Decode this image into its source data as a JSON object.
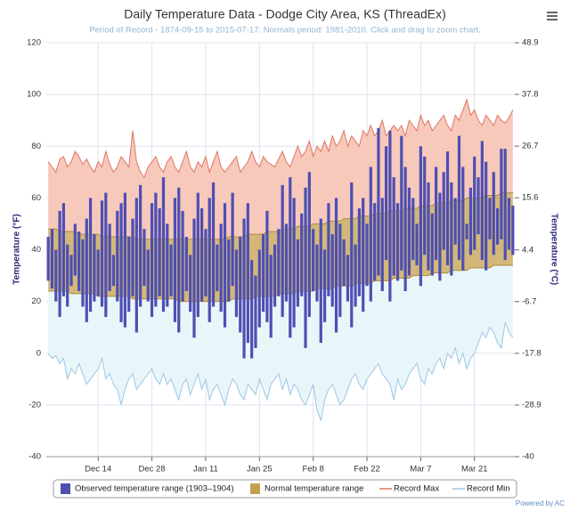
{
  "chart_data": {
    "type": "combo",
    "title": "Daily Temperature Data - Dodge City Area, KS (ThreadEx)",
    "subtitle": "Period of Record - 1874-09-15 to 2015-07-17. Normals period: 1981-2010. Click and drag to zoom chart.",
    "y_label": "Temperature (°F)",
    "y2_label": "Temperature (°C)",
    "credit": "Powered by AC",
    "x": [
      "Dec 1",
      "Dec 2",
      "Dec 3",
      "Dec 4",
      "Dec 5",
      "Dec 6",
      "Dec 7",
      "Dec 8",
      "Dec 9",
      "Dec 10",
      "Dec 11",
      "Dec 12",
      "Dec 13",
      "Dec 14",
      "Dec 15",
      "Dec 16",
      "Dec 17",
      "Dec 18",
      "Dec 19",
      "Dec 20",
      "Dec 21",
      "Dec 22",
      "Dec 23",
      "Dec 24",
      "Dec 25",
      "Dec 26",
      "Dec 27",
      "Dec 28",
      "Dec 29",
      "Dec 30",
      "Dec 31",
      "Jan 1",
      "Jan 2",
      "Jan 3",
      "Jan 4",
      "Jan 5",
      "Jan 6",
      "Jan 7",
      "Jan 8",
      "Jan 9",
      "Jan 10",
      "Jan 11",
      "Jan 12",
      "Jan 13",
      "Jan 14",
      "Jan 15",
      "Jan 16",
      "Jan 17",
      "Jan 18",
      "Jan 19",
      "Jan 20",
      "Jan 21",
      "Jan 22",
      "Jan 23",
      "Jan 24",
      "Jan 25",
      "Jan 26",
      "Jan 27",
      "Jan 28",
      "Jan 29",
      "Jan 30",
      "Jan 31",
      "Feb 1",
      "Feb 2",
      "Feb 3",
      "Feb 4",
      "Feb 5",
      "Feb 6",
      "Feb 7",
      "Feb 8",
      "Feb 9",
      "Feb 10",
      "Feb 11",
      "Feb 12",
      "Feb 13",
      "Feb 14",
      "Feb 15",
      "Feb 16",
      "Feb 17",
      "Feb 18",
      "Feb 19",
      "Feb 20",
      "Feb 21",
      "Feb 22",
      "Feb 23",
      "Feb 24",
      "Feb 25",
      "Feb 26",
      "Feb 27",
      "Feb 28",
      "Feb 29",
      "Mar 1",
      "Mar 2",
      "Mar 3",
      "Mar 4",
      "Mar 5",
      "Mar 6",
      "Mar 7",
      "Mar 8",
      "Mar 9",
      "Mar 10",
      "Mar 11",
      "Mar 12",
      "Mar 13",
      "Mar 14",
      "Mar 15",
      "Mar 16",
      "Mar 17",
      "Mar 18",
      "Mar 19",
      "Mar 20",
      "Mar 21",
      "Mar 22",
      "Mar 23",
      "Mar 24",
      "Mar 25",
      "Mar 26",
      "Mar 27",
      "Mar 28",
      "Mar 29",
      "Mar 30",
      "Mar 31"
    ],
    "xticks": [
      "Dec 14",
      "Dec 28",
      "Jan 11",
      "Jan 25",
      "Feb 8",
      "Feb 22",
      "Mar 7",
      "Mar 21"
    ],
    "ylim": [
      -40,
      120
    ],
    "yticks": [
      -40,
      -20,
      0,
      20,
      40,
      60,
      80,
      100,
      120
    ],
    "y2lim": [
      -40,
      48.9
    ],
    "y2ticks": [
      -40,
      -28.9,
      -17.8,
      -6.7,
      4.4,
      15.6,
      26.7,
      37.8,
      48.9
    ],
    "grid": true,
    "legend": "bottom",
    "series": [
      {
        "name": "Record Max",
        "type": "line",
        "color": "#e07462",
        "fill": "#f7c9bb",
        "values": [
          74,
          72,
          70,
          75,
          76,
          72,
          74,
          78,
          76,
          73,
          75,
          72,
          70,
          74,
          72,
          78,
          73,
          70,
          72,
          76,
          74,
          72,
          86,
          74,
          70,
          68,
          72,
          74,
          76,
          72,
          70,
          74,
          76,
          72,
          70,
          74,
          78,
          72,
          70,
          74,
          72,
          76,
          70,
          74,
          78,
          72,
          70,
          72,
          74,
          76,
          70,
          72,
          74,
          78,
          74,
          72,
          76,
          74,
          73,
          72,
          75,
          78,
          74,
          72,
          76,
          80,
          76,
          78,
          82,
          76,
          80,
          78,
          82,
          78,
          84,
          80,
          82,
          86,
          80,
          84,
          82,
          80,
          86,
          84,
          88,
          84,
          86,
          90,
          84,
          86,
          88,
          86,
          88,
          84,
          90,
          88,
          86,
          92,
          88,
          90,
          86,
          88,
          90,
          92,
          88,
          86,
          92,
          90,
          94,
          98,
          92,
          94,
          90,
          88,
          92,
          90,
          88,
          92,
          90,
          89,
          91,
          94
        ]
      },
      {
        "name": "Record Min",
        "type": "line",
        "color": "#9cc6e6",
        "fill": "#e9f6f9",
        "values": [
          0,
          -2,
          -1,
          -4,
          -2,
          -10,
          -6,
          -8,
          -4,
          -8,
          -12,
          -10,
          -8,
          -6,
          -2,
          -10,
          -8,
          -12,
          -14,
          -20,
          -14,
          -10,
          -8,
          -14,
          -12,
          -10,
          -8,
          -6,
          -10,
          -12,
          -8,
          -12,
          -10,
          -14,
          -18,
          -12,
          -10,
          -16,
          -12,
          -8,
          -14,
          -10,
          -18,
          -14,
          -12,
          -16,
          -20,
          -14,
          -10,
          -12,
          -16,
          -18,
          -12,
          -14,
          -16,
          -10,
          -14,
          -18,
          -12,
          -10,
          -8,
          -14,
          -10,
          -16,
          -12,
          -14,
          -18,
          -20,
          -16,
          -12,
          -22,
          -26,
          -18,
          -14,
          -12,
          -16,
          -20,
          -18,
          -14,
          -10,
          -8,
          -12,
          -14,
          -10,
          -8,
          -6,
          -4,
          -8,
          -10,
          -12,
          -18,
          -10,
          -14,
          -12,
          -8,
          -6,
          -4,
          -10,
          -12,
          -6,
          -8,
          -4,
          -2,
          -6,
          0,
          -2,
          2,
          -4,
          0,
          -6,
          -2,
          0,
          4,
          8,
          6,
          10,
          8,
          4,
          2,
          12,
          8,
          6
        ]
      },
      {
        "name": "Normal temperature range",
        "type": "arearange",
        "color": "#c4a04e",
        "low": [
          24,
          24,
          24,
          24,
          24,
          24,
          23,
          23,
          23,
          23,
          23,
          23,
          23,
          22,
          22,
          22,
          22,
          22,
          22,
          22,
          22,
          22,
          21,
          21,
          21,
          21,
          21,
          21,
          21,
          21,
          21,
          21,
          21,
          21,
          20,
          20,
          20,
          20,
          20,
          20,
          20,
          20,
          20,
          20,
          20,
          20,
          20,
          20,
          21,
          21,
          21,
          21,
          21,
          21,
          22,
          22,
          22,
          22,
          22,
          22,
          23,
          23,
          23,
          23,
          23,
          24,
          24,
          24,
          24,
          24,
          25,
          25,
          25,
          25,
          25,
          26,
          26,
          26,
          26,
          26,
          27,
          27,
          27,
          27,
          27,
          28,
          28,
          28,
          28,
          28,
          29,
          29,
          29,
          29,
          29,
          30,
          30,
          30,
          30,
          30,
          31,
          31,
          31,
          31,
          31,
          32,
          32,
          32,
          32,
          32,
          33,
          33,
          33,
          33,
          33,
          33,
          34,
          34,
          34,
          34,
          34,
          34
        ],
        "high": [
          48,
          48,
          48,
          47,
          47,
          47,
          47,
          47,
          46,
          46,
          46,
          46,
          46,
          46,
          45,
          45,
          45,
          45,
          45,
          45,
          45,
          45,
          45,
          44,
          44,
          44,
          44,
          44,
          44,
          44,
          44,
          44,
          44,
          44,
          44,
          44,
          44,
          44,
          44,
          44,
          44,
          44,
          44,
          44,
          44,
          44,
          44,
          45,
          45,
          45,
          45,
          45,
          46,
          46,
          46,
          46,
          46,
          47,
          47,
          47,
          47,
          48,
          48,
          48,
          48,
          49,
          49,
          49,
          49,
          50,
          50,
          50,
          50,
          51,
          51,
          51,
          51,
          52,
          52,
          52,
          52,
          53,
          53,
          53,
          53,
          54,
          54,
          54,
          54,
          55,
          55,
          55,
          55,
          56,
          56,
          56,
          56,
          57,
          57,
          57,
          57,
          58,
          58,
          58,
          58,
          59,
          59,
          59,
          59,
          60,
          60,
          60,
          60,
          60,
          61,
          61,
          61,
          61,
          62,
          62,
          62,
          62
        ]
      },
      {
        "name": "Observed temperature range (1903–1904)",
        "type": "columnrange",
        "color": "#4e4fb2",
        "low": [
          28,
          25,
          20,
          14,
          22,
          18,
          26,
          30,
          24,
          18,
          12,
          16,
          20,
          22,
          18,
          14,
          24,
          26,
          20,
          12,
          10,
          16,
          22,
          8,
          18,
          26,
          20,
          14,
          18,
          22,
          16,
          18,
          22,
          12,
          8,
          20,
          24,
          16,
          6,
          14,
          20,
          22,
          12,
          18,
          24,
          16,
          10,
          20,
          26,
          14,
          8,
          -2,
          4,
          -2,
          2,
          10,
          16,
          12,
          6,
          18,
          22,
          14,
          20,
          6,
          10,
          18,
          22,
          2,
          14,
          24,
          20,
          4,
          12,
          22,
          18,
          8,
          14,
          26,
          20,
          10,
          18,
          22,
          16,
          26,
          20,
          28,
          30,
          24,
          36,
          20,
          30,
          28,
          32,
          24,
          30,
          36,
          34,
          26,
          38,
          32,
          30,
          36,
          28,
          40,
          34,
          30,
          42,
          36,
          32,
          44,
          38,
          40,
          46,
          36,
          32,
          44,
          38,
          42,
          44,
          36,
          40,
          38
        ],
        "high": [
          45,
          48,
          40,
          55,
          58,
          42,
          38,
          50,
          47,
          44,
          52,
          60,
          46,
          40,
          59,
          62,
          50,
          38,
          55,
          58,
          62,
          45,
          52,
          60,
          65,
          48,
          40,
          58,
          62,
          56,
          68,
          50,
          42,
          60,
          64,
          55,
          45,
          38,
          52,
          62,
          56,
          48,
          60,
          66,
          42,
          50,
          58,
          44,
          62,
          40,
          45,
          52,
          58,
          36,
          30,
          40,
          46,
          55,
          38,
          42,
          48,
          65,
          50,
          68,
          60,
          44,
          54,
          64,
          70,
          48,
          42,
          52,
          40,
          58,
          46,
          60,
          50,
          44,
          38,
          66,
          42,
          56,
          60,
          50,
          72,
          58,
          87,
          60,
          80,
          86,
          68,
          58,
          84,
          72,
          64,
          60,
          50,
          80,
          76,
          66,
          54,
          72,
          62,
          70,
          78,
          66,
          60,
          84,
          72,
          50,
          64,
          76,
          68,
          82,
          74,
          60,
          70,
          56,
          79,
          79,
          60,
          57
        ]
      }
    ]
  }
}
